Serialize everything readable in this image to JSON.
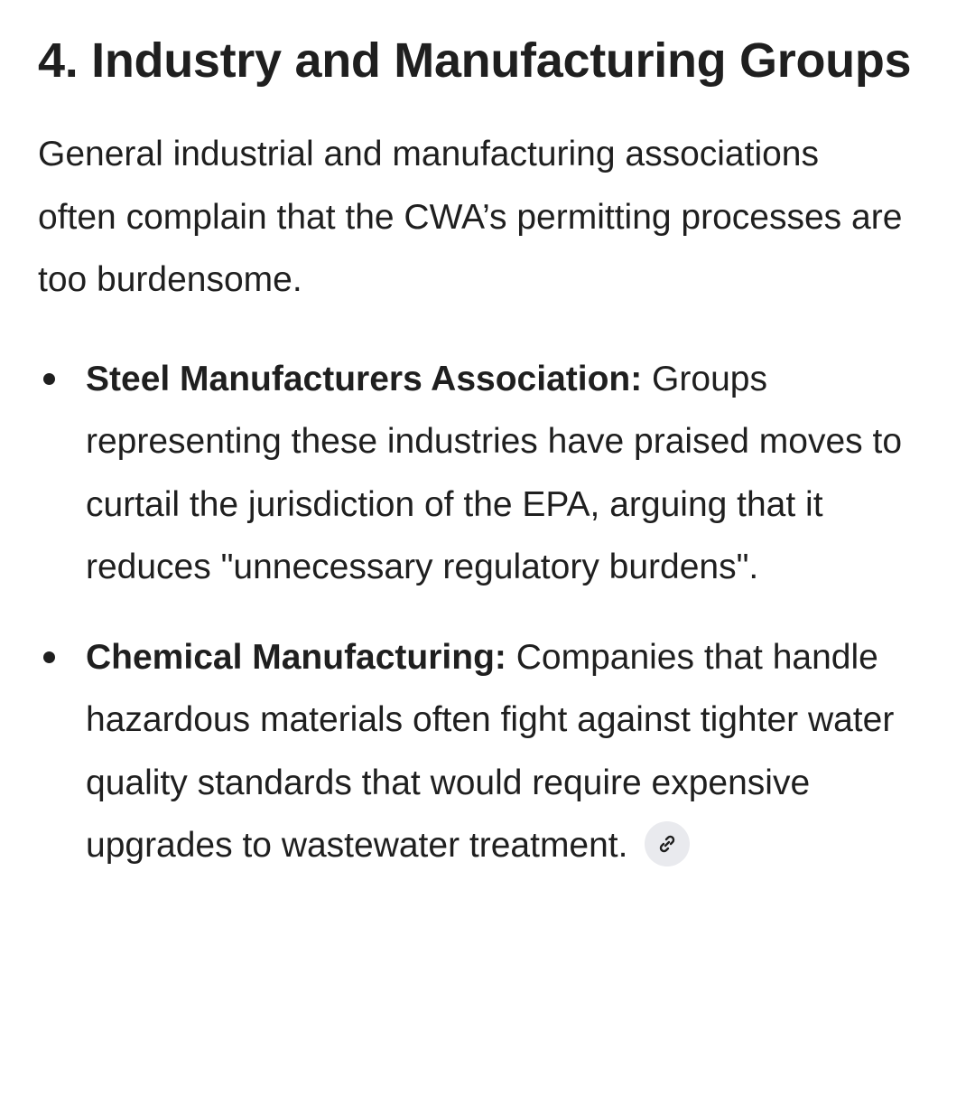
{
  "heading": "4. Industry and Manufacturing Groups",
  "intro": "General industrial and manufacturing associations often complain that the CWA’s permitting processes are too burdensome.",
  "items": [
    {
      "title": "Steel Manufacturers Association:",
      "text": " Groups representing these industries have praised moves to curtail the jurisdiction of the EPA, arguing that it reduces \"unnecessary regulatory burdens\"."
    },
    {
      "title": "Chemical Manufacturing:",
      "text": " Companies that handle hazardous materials often fight against tighter water quality standards that would require expensive upgrades to wastewater treatment."
    }
  ],
  "icons": {
    "source_link": "link-icon"
  },
  "colors": {
    "text": "#1f1f1f",
    "chip_bg": "#e9eaee"
  }
}
